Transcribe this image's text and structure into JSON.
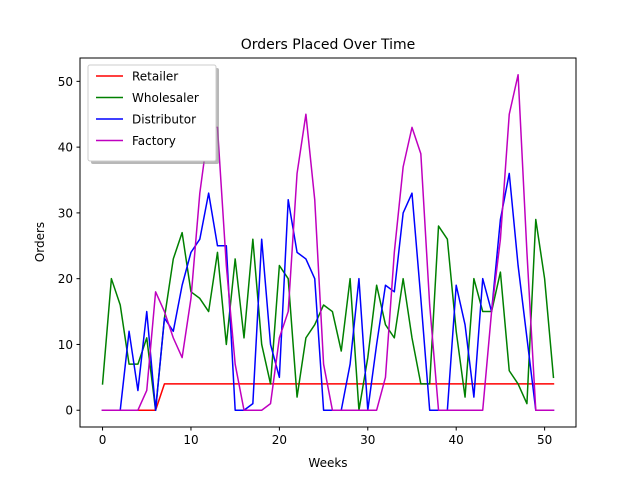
{
  "chart_data": {
    "type": "line",
    "title": "Orders Placed Over Time",
    "xlabel": "Weeks",
    "ylabel": "Orders",
    "xlim": [
      -2.55,
      53.55
    ],
    "ylim": [
      -2.55,
      53.55
    ],
    "xticks": [
      0,
      10,
      20,
      30,
      40,
      50
    ],
    "yticks": [
      0,
      10,
      20,
      30,
      40,
      50
    ],
    "grid": false,
    "legend_position": "top-left",
    "x": [
      0,
      1,
      2,
      3,
      4,
      5,
      6,
      7,
      8,
      9,
      10,
      11,
      12,
      13,
      14,
      15,
      16,
      17,
      18,
      19,
      20,
      21,
      22,
      23,
      24,
      25,
      26,
      27,
      28,
      29,
      30,
      31,
      32,
      33,
      34,
      35,
      36,
      37,
      38,
      39,
      40,
      41,
      42,
      43,
      44,
      45,
      46,
      47,
      48,
      49,
      50,
      51
    ],
    "series": [
      {
        "name": "Retailer",
        "color": "#ff0000",
        "values": [
          0,
          0,
          0,
          0,
          0,
          0,
          0,
          4,
          4,
          4,
          4,
          4,
          4,
          4,
          4,
          4,
          4,
          4,
          4,
          4,
          4,
          4,
          4,
          4,
          4,
          4,
          4,
          4,
          4,
          4,
          4,
          4,
          4,
          4,
          4,
          4,
          4,
          4,
          4,
          4,
          4,
          4,
          4,
          4,
          4,
          4,
          4,
          4,
          4,
          4,
          4,
          4
        ]
      },
      {
        "name": "Wholesaler",
        "color": "#008000",
        "values": [
          4,
          20,
          16,
          7,
          7,
          11,
          0,
          14,
          23,
          27,
          18,
          17,
          15,
          24,
          10,
          23,
          11,
          26,
          10,
          4,
          22,
          20,
          2,
          11,
          13,
          16,
          15,
          9,
          20,
          0,
          8,
          19,
          13,
          11,
          20,
          11,
          4,
          4,
          28,
          26,
          12,
          2,
          20,
          15,
          15,
          21,
          6,
          4,
          1,
          29,
          20,
          5
        ]
      },
      {
        "name": "Distributor",
        "color": "#0000ff",
        "values": [
          0,
          0,
          0,
          12,
          3,
          15,
          0,
          14,
          12,
          19,
          24,
          26,
          33,
          25,
          25,
          0,
          0,
          1,
          26,
          10,
          5,
          32,
          24,
          23,
          20,
          0,
          0,
          0,
          7,
          20,
          0,
          10,
          19,
          18,
          30,
          33,
          17,
          0,
          0,
          0,
          19,
          13,
          2,
          20,
          15,
          29,
          36,
          22,
          11,
          0,
          0,
          0
        ]
      },
      {
        "name": "Factory",
        "color": "#bf00bf",
        "values": [
          0,
          0,
          0,
          0,
          0,
          3,
          18,
          15,
          11,
          8,
          17,
          33,
          43,
          43,
          22,
          7,
          0,
          0,
          0,
          1,
          11,
          15,
          36,
          45,
          32,
          7,
          0,
          0,
          0,
          0,
          0,
          0,
          5,
          24,
          37,
          43,
          39,
          16,
          0,
          0,
          0,
          0,
          0,
          0,
          15,
          26,
          45,
          51,
          24,
          0,
          0,
          0
        ]
      }
    ]
  }
}
